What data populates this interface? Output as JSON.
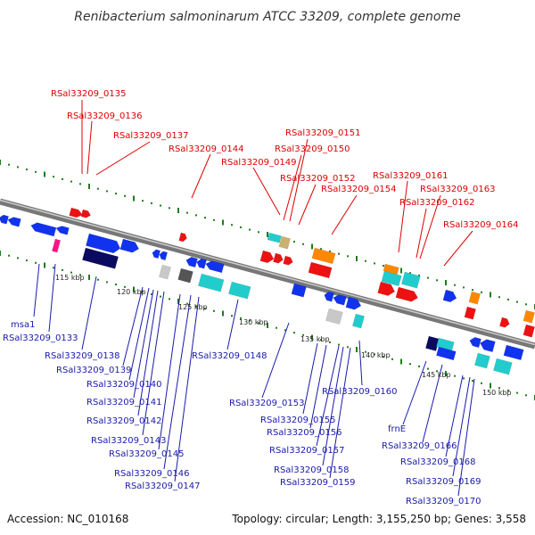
{
  "title": "Renibacterium salmoninarum ATCC 33209, complete genome",
  "footer": {
    "accession": "Accession: NC_010168",
    "summary": "Topology: circular; Length: 3,155,250 bp; Genes: 3,558"
  },
  "colors": {
    "top_label": "#dd0000",
    "bottom_label": "#1a1aaa",
    "backbone": "#888888",
    "tick_mark": "#1e7d1e"
  },
  "scale_ticks": [
    "115 kbp",
    "120 kbp",
    "125 kbp",
    "130 kbp",
    "135 kbp",
    "140 kbp",
    "145 kbp",
    "150 kbp"
  ],
  "top_labels": [
    "RSal33209_0135",
    "RSal33209_0136",
    "RSal33209_0137",
    "RSal33209_0144",
    "RSal33209_0151",
    "RSal33209_0150",
    "RSal33209_0149",
    "RSal33209_0152",
    "RSal33209_0154",
    "RSal33209_0161",
    "RSal33209_0163",
    "RSal33209_0162",
    "RSal33209_0164"
  ],
  "bottom_labels": [
    "msa1",
    "RSal33209_0133",
    "RSal33209_0138",
    "RSal33209_0139",
    "RSal33209_0140",
    "RSal33209_0141",
    "RSal33209_0142",
    "RSal33209_0143",
    "RSal33209_0145",
    "RSal33209_0146",
    "RSal33209_0147",
    "RSal33209_0148",
    "RSal33209_0153",
    "RSal33209_0155",
    "RSal33209_0156",
    "RSal33209_0157",
    "RSal33209_0158",
    "RSal33209_0159",
    "RSal33209_0160",
    "frnE",
    "RSal33209_0166",
    "RSal33209_0168",
    "RSal33209_0169",
    "RSal33209_0170"
  ]
}
